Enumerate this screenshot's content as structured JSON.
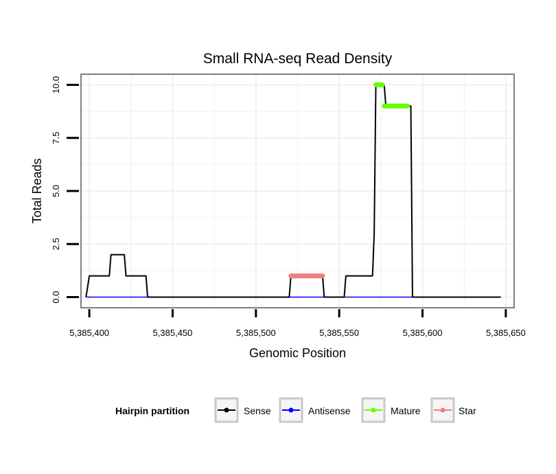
{
  "chart_data": {
    "type": "line",
    "title": "Small RNA-seq Read Density",
    "xlabel": "Genomic Position",
    "ylabel": "Total Reads",
    "xlim": [
      5385395,
      5385655
    ],
    "ylim": [
      -0.5,
      10.5
    ],
    "x_ticks": [
      5385400,
      5385450,
      5385500,
      5385550,
      5385600,
      5385650
    ],
    "x_tick_labels": [
      "5,385,400",
      "5,385,450",
      "5,385,500",
      "5,385,550",
      "5,385,600",
      "5,385,650"
    ],
    "y_ticks": [
      0,
      2.5,
      5,
      7.5,
      10
    ],
    "y_tick_labels": [
      "0.0",
      "2.5",
      "5.0",
      "7.5",
      "10.0"
    ],
    "grid": true,
    "legend": {
      "title": "Hairpin partition",
      "position": "bottom",
      "entries": [
        "Sense",
        "Antisense",
        "Mature",
        "Star"
      ]
    },
    "series": [
      {
        "name": "Sense",
        "color": "#000000",
        "x": [
          5385398,
          5385400,
          5385412,
          5385413,
          5385421,
          5385422,
          5385434,
          5385435,
          5385520,
          5385521,
          5385540,
          5385541,
          5385553,
          5385554,
          5385570,
          5385571,
          5385572,
          5385573,
          5385577,
          5385578,
          5385593,
          5385594,
          5385647
        ],
        "y": [
          0,
          1,
          1,
          2,
          2,
          1,
          1,
          0,
          0,
          1,
          1,
          0,
          0,
          1,
          1,
          3,
          10,
          10,
          10,
          9,
          9,
          0,
          0
        ]
      },
      {
        "name": "Antisense",
        "color": "#0000ff",
        "x": [
          5385398,
          5385647
        ],
        "y": [
          0,
          0
        ]
      },
      {
        "name": "Mature",
        "color": "#66ff00",
        "segments": [
          {
            "x": [
              5385572,
              5385576
            ],
            "y": 10
          },
          {
            "x": [
              5385577,
              5385591
            ],
            "y": 9
          }
        ]
      },
      {
        "name": "Star",
        "color": "#f08080",
        "segments": [
          {
            "x": [
              5385521,
              5385540
            ],
            "y": 1
          }
        ]
      }
    ]
  }
}
